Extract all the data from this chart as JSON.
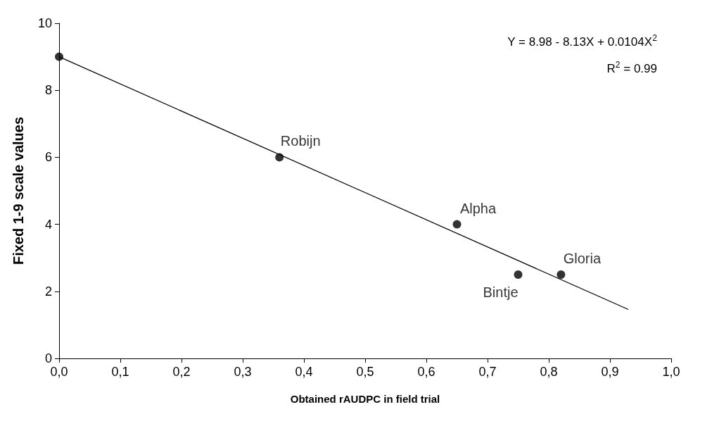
{
  "chart_data": {
    "type": "scatter",
    "xlabel": "Obtained rAUDPC in field trial",
    "ylabel": "Fixed 1-9 scale values",
    "series": [
      {
        "color": "#000000",
        "x": [
          0,
          0.36,
          0.65,
          0.75,
          0.82
        ],
        "values": [
          9,
          6,
          4,
          2.5,
          2.5
        ]
      },
      {
        "type": "line",
        "color": "#000000",
        "marker": "none",
        "x": [
          0,
          0.93
        ],
        "values": [
          9,
          1.46
        ]
      }
    ],
    "marker": "circle",
    "line_style": "solid",
    "grid": false,
    "xlim": [
      0,
      1
    ],
    "ylim": [
      0,
      10
    ],
    "xticks": [
      {
        "value": 0,
        "label": "0,0"
      },
      {
        "value": 0.1,
        "label": "0,1"
      },
      {
        "value": 0.2,
        "label": "0,2"
      },
      {
        "value": 0.3,
        "label": "0,3"
      },
      {
        "value": 0.4,
        "label": "0,4"
      },
      {
        "value": 0.5,
        "label": "0,5"
      },
      {
        "value": 0.6,
        "label": "0,6"
      },
      {
        "value": 0.7,
        "label": "0,7"
      },
      {
        "value": 0.8,
        "label": "0,8"
      },
      {
        "value": 0.9,
        "label": "0,9"
      },
      {
        "value": 1,
        "label": "1,0"
      }
    ],
    "yticks": [
      0,
      2,
      4,
      6,
      8,
      10
    ],
    "annotations": [
      "Y = 8.98 - 8.13X + 0.0104X$^{2}$",
      "R$^{2}$ = 0.99",
      {
        "text": "Robijn",
        "x": 0.36,
        "y": 6
      },
      {
        "text": "Alpha",
        "x": 0.65,
        "y": 4
      },
      {
        "text": "Bintje",
        "x": 0.75,
        "y": 2.5
      },
      {
        "text": "Gloria",
        "x": 0.82,
        "y": 2.5
      }
    ]
  }
}
